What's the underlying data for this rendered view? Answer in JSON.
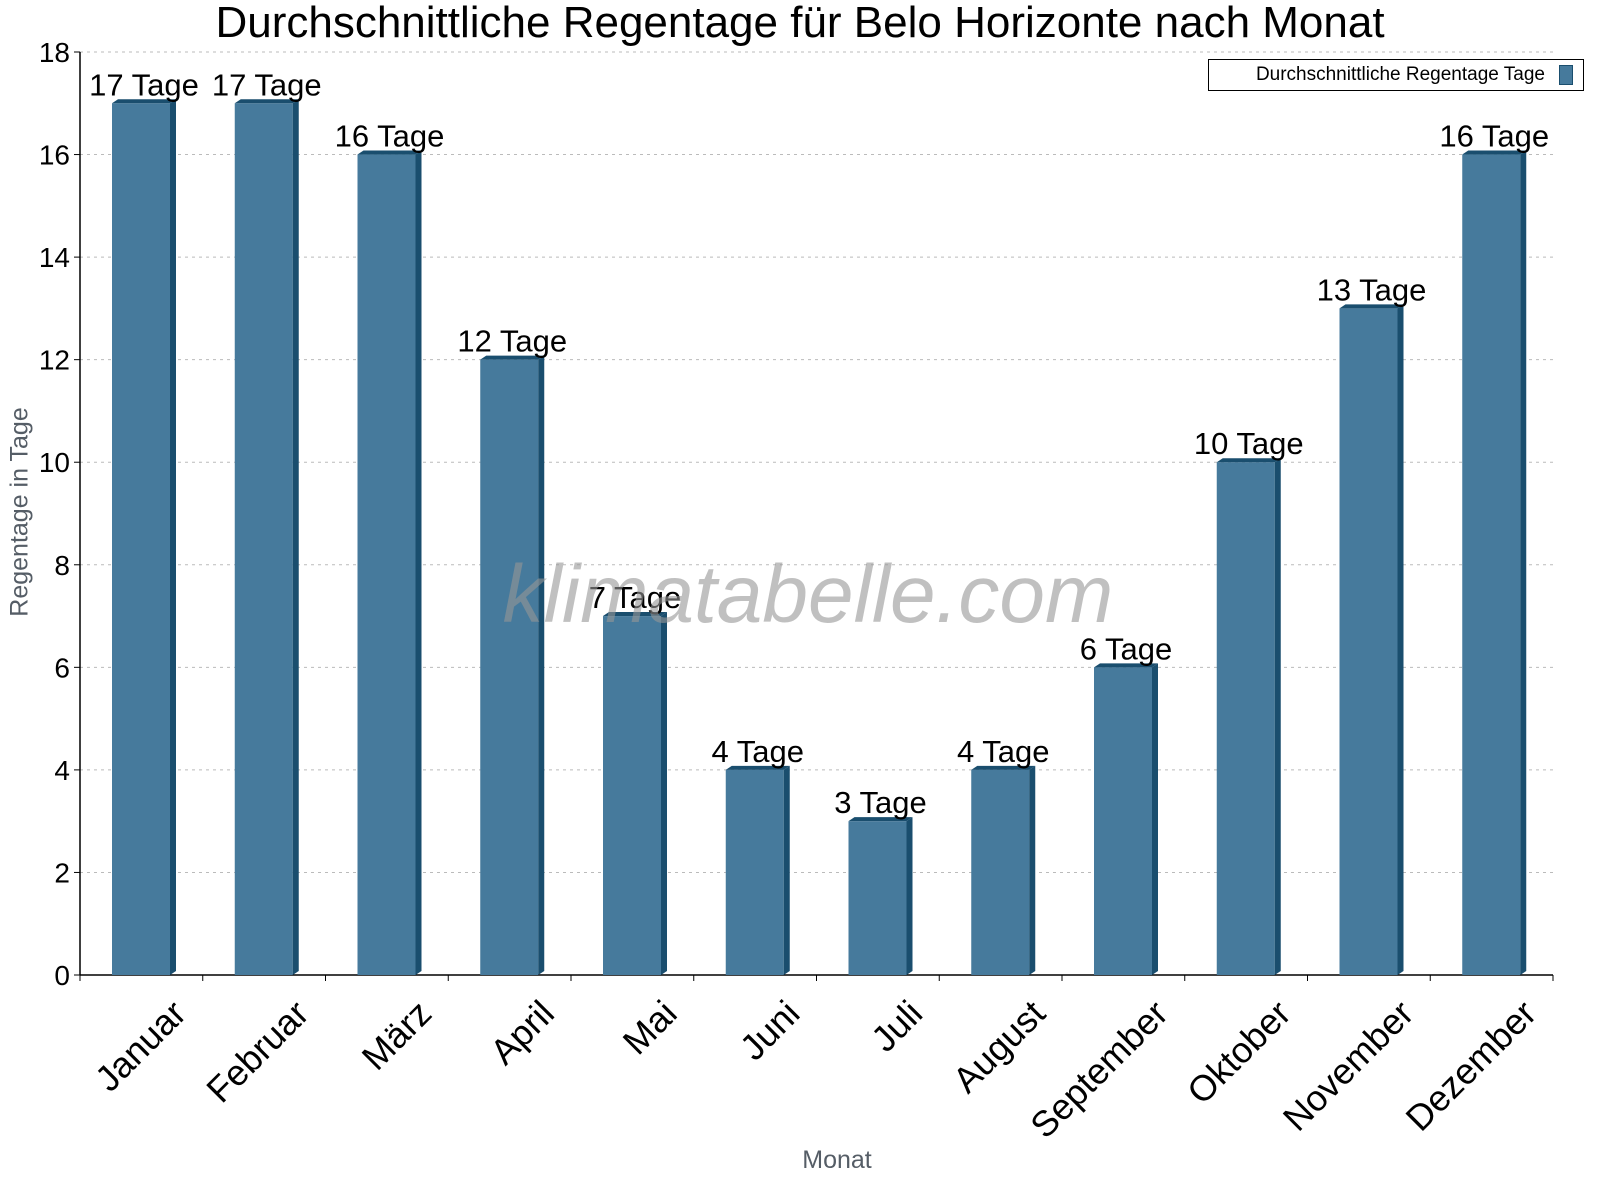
{
  "chart_data": {
    "type": "bar",
    "title": "Durchschnittliche Regentage für Belo Horizonte nach Monat",
    "xlabel": "Monat",
    "ylabel": "Regentage in Tage",
    "categories": [
      "Januar",
      "Februar",
      "März",
      "April",
      "Mai",
      "Juni",
      "Juli",
      "August",
      "September",
      "Oktober",
      "November",
      "Dezember"
    ],
    "series": [
      {
        "name": "Durchschnittliche Regentage Tage",
        "values": [
          17,
          17,
          16,
          12,
          7,
          4,
          3,
          4,
          6,
          10,
          13,
          16
        ],
        "color": "#467a9c",
        "data_labels": [
          "17 Tage",
          "17 Tage",
          "16 Tage",
          "12 Tage",
          "7 Tage",
          "4 Tage",
          "3 Tage",
          "4 Tage",
          "6 Tage",
          "10 Tage",
          "13 Tage",
          "16 Tage"
        ]
      }
    ],
    "ylim": [
      0,
      18
    ],
    "yticks": [
      0,
      2,
      4,
      6,
      8,
      10,
      12,
      14,
      16,
      18
    ],
    "grid": true,
    "legend_position": "top-right"
  },
  "legend": {
    "label": "Durchschnittliche Regentage Tage"
  },
  "watermark": "klimatabelle.com",
  "colors": {
    "bar": "#467a9c",
    "bar_side": "#1a4e6e",
    "grid": "#bbbbbb",
    "axis_label": "#555d66"
  }
}
